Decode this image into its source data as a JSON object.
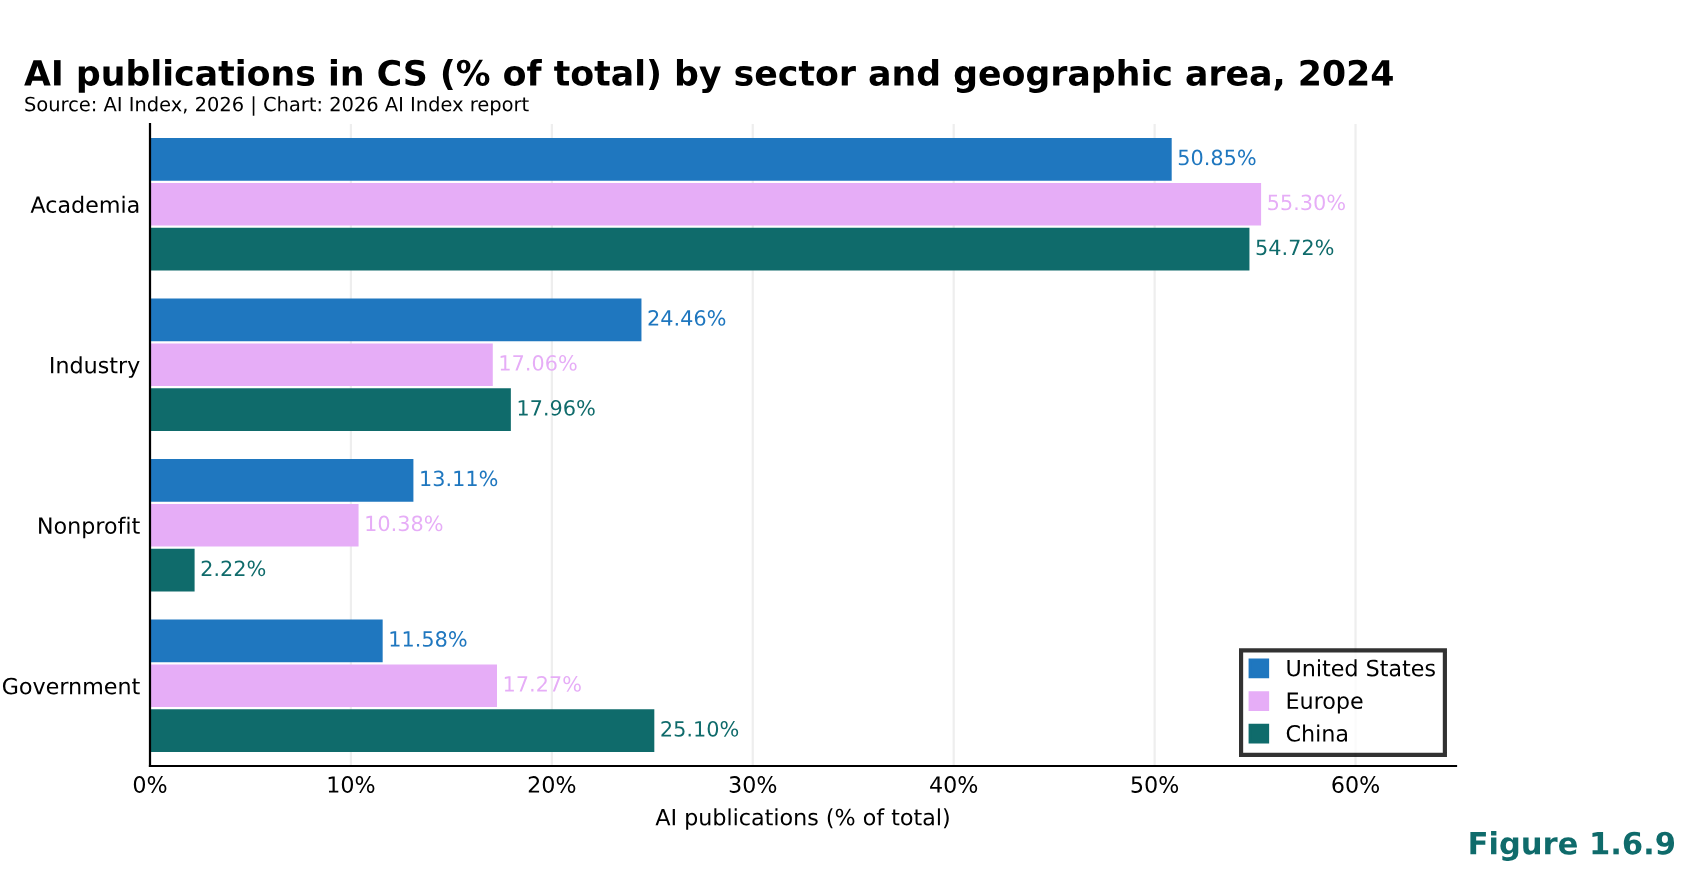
{
  "chart_data": {
    "type": "bar",
    "orientation": "horizontal",
    "title": "AI publications in CS (% of total) by sector and geographic area, 2024",
    "subtitle": "Source: AI Index, 2026 | Chart: 2026 AI Index report",
    "xlabel": "AI publications (% of total)",
    "annotations": [
      "Figure 1.6.9"
    ],
    "categories": [
      "Academia",
      "Industry",
      "Nonprofit",
      "Government"
    ],
    "series": [
      {
        "name": "United States",
        "color": "#1f77bf",
        "values": [
          50.85,
          24.46,
          13.11,
          11.58
        ],
        "value_labels": [
          "50.85%",
          "24.46%",
          "13.11%",
          "11.58%"
        ]
      },
      {
        "name": "Europe",
        "color": "#e6adf7",
        "values": [
          55.3,
          17.06,
          10.38,
          17.27
        ],
        "value_labels": [
          "55.30%",
          "17.06%",
          "10.38%",
          "17.27%"
        ]
      },
      {
        "name": "China",
        "color": "#0f6b6b",
        "values": [
          54.72,
          17.96,
          2.22,
          25.1
        ],
        "value_labels": [
          "54.72%",
          "17.96%",
          "2.22%",
          "25.10%"
        ]
      }
    ],
    "xlim": [
      0,
      65
    ],
    "xticks": [
      {
        "value": 0,
        "label": "0%"
      },
      {
        "value": 10,
        "label": "10%"
      },
      {
        "value": 20,
        "label": "20%"
      },
      {
        "value": 30,
        "label": "30%"
      },
      {
        "value": 40,
        "label": "40%"
      },
      {
        "value": 50,
        "label": "50%"
      },
      {
        "value": 60,
        "label": "60%"
      }
    ],
    "grid": "x",
    "legend": "bottom right"
  }
}
